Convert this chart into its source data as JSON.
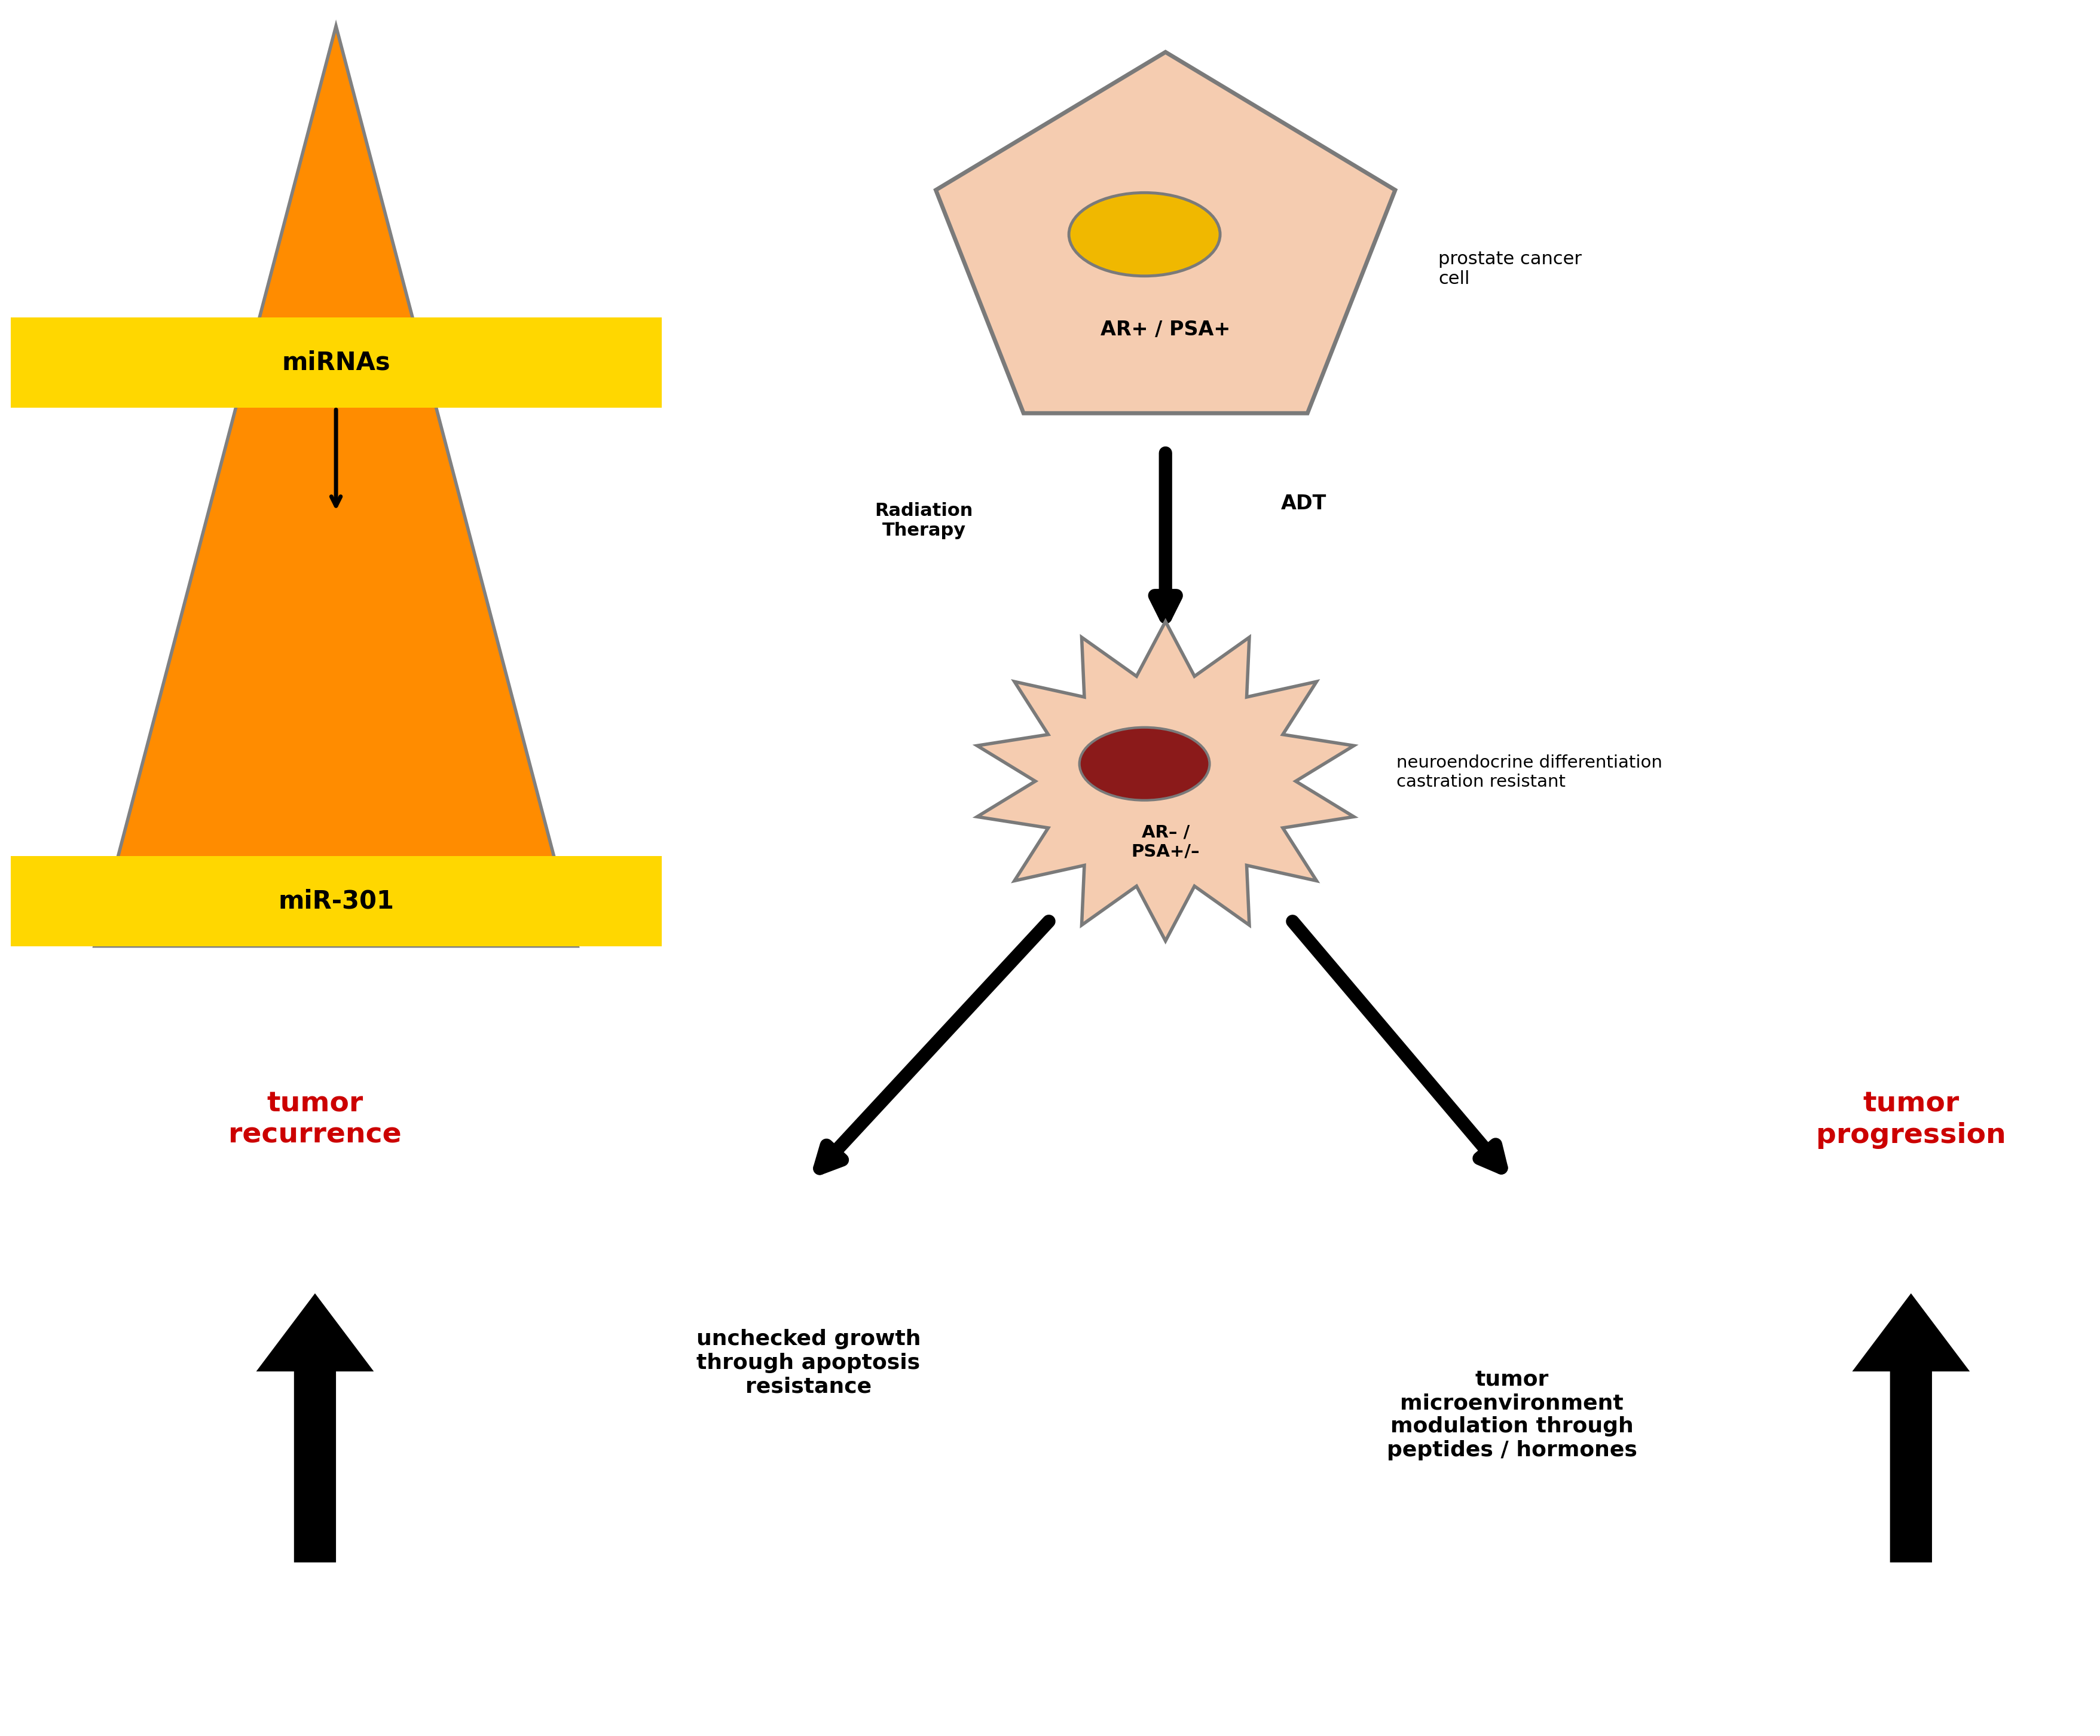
{
  "bg_color": "#ffffff",
  "pentagon_color": "#f5ccb0",
  "pentagon_edge_color": "#7a7a7a",
  "nucleus_color_top": "#f0b800",
  "nucleus_edge_color": "#7a7a7a",
  "starburst_color": "#f5ccb0",
  "starburst_edge_color": "#7a7a7a",
  "nucleus_bottom_color": "#8b1a1a",
  "triangle_fill": "#ff8c00",
  "triangle_edge": "#808080",
  "mirnas_box_color": "#ffd700",
  "mir301_box_color": "#ffd700",
  "arrow_color": "#000000",
  "label_prostate": "prostate cancer\ncell",
  "label_ar_psa_top": "AR+ / PSA+",
  "label_ar_psa_bottom": "AR– /\nPSA+/–",
  "label_radiation": "Radiation\nTherapy",
  "label_adt": "ADT",
  "label_neuro": "neuroendocrine differentiation\ncastration resistant",
  "label_mirnas": "miRNAs",
  "label_mir301": "miR-301",
  "label_tumor_recurrence": "tumor\nrecurrence",
  "label_tumor_progression": "tumor\nprogression",
  "label_unchecked": "unchecked growth\nthrough apoptosis\nresistance",
  "label_microenv": "tumor\nmicroenvironment\nmodulation through\npeptides / hormones",
  "red_color": "#cc0000"
}
